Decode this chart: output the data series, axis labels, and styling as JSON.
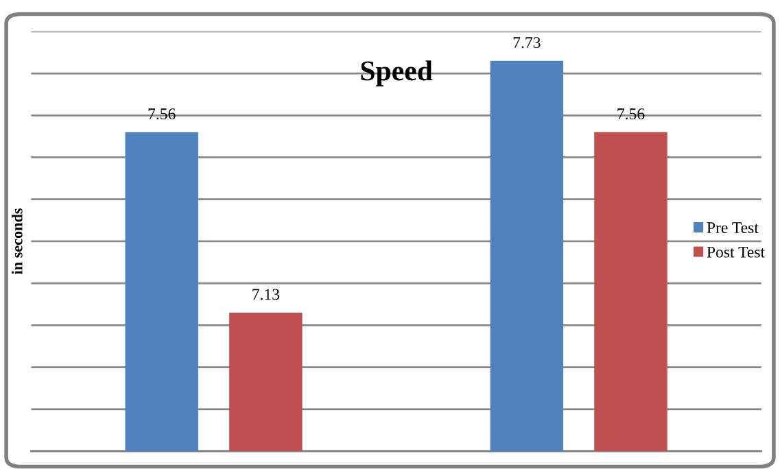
{
  "chart_data": {
    "type": "bar",
    "title": "Speed",
    "ylabel": "in seconds",
    "categories": [
      null,
      null
    ],
    "series": [
      {
        "name": "Pre Test",
        "color": "#4f81bd",
        "values": [
          7.56,
          7.73
        ]
      },
      {
        "name": "Post Test",
        "color": "#c0504d",
        "values": [
          7.13,
          7.56
        ]
      }
    ],
    "ylim": [
      6.8,
      7.8
    ],
    "yticks": [
      {
        "value": 6.8,
        "label": null
      },
      {
        "value": 6.9,
        "label": null
      },
      {
        "value": 7.0,
        "label": null
      },
      {
        "value": 7.1,
        "label": null
      },
      {
        "value": 7.2,
        "label": null
      },
      {
        "value": 7.3,
        "label": null
      },
      {
        "value": 7.4,
        "label": null
      },
      {
        "value": 7.5,
        "label": null
      },
      {
        "value": 7.6,
        "label": null
      },
      {
        "value": 7.7,
        "label": null
      },
      {
        "value": 7.8,
        "label": null
      }
    ],
    "grid": "y",
    "legend": "right",
    "data_labels": true,
    "tick_labels": false
  }
}
